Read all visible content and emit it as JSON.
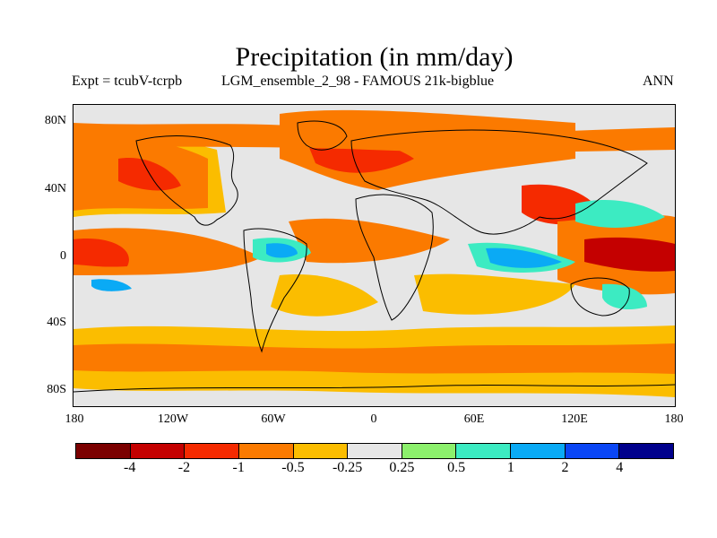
{
  "title": "Precipitation (in mm/day)",
  "subtitle_left": "Expt = tcubV-tcrpb",
  "subtitle_center": "LGM_ensemble_2_98 - FAMOUS 21k-bigblue",
  "subtitle_right": "ANN",
  "lat_labels": [
    "80N",
    "40N",
    "0",
    "40S",
    "80S"
  ],
  "lon_labels": [
    "180",
    "120W",
    "60W",
    "0",
    "60E",
    "120E",
    "180"
  ],
  "colorbar": {
    "colors": [
      "#7b0000",
      "#c40000",
      "#f52a00",
      "#fb7a00",
      "#fbbd00",
      "#e6e6e6",
      "#8cf06c",
      "#3cebc2",
      "#0aaaf5",
      "#0a46f5",
      "#00008c"
    ],
    "labels": [
      "-4",
      "-2",
      "-1",
      "-0.5",
      "-0.25",
      "0.25",
      "0.5",
      "1",
      "2",
      "4"
    ]
  }
}
